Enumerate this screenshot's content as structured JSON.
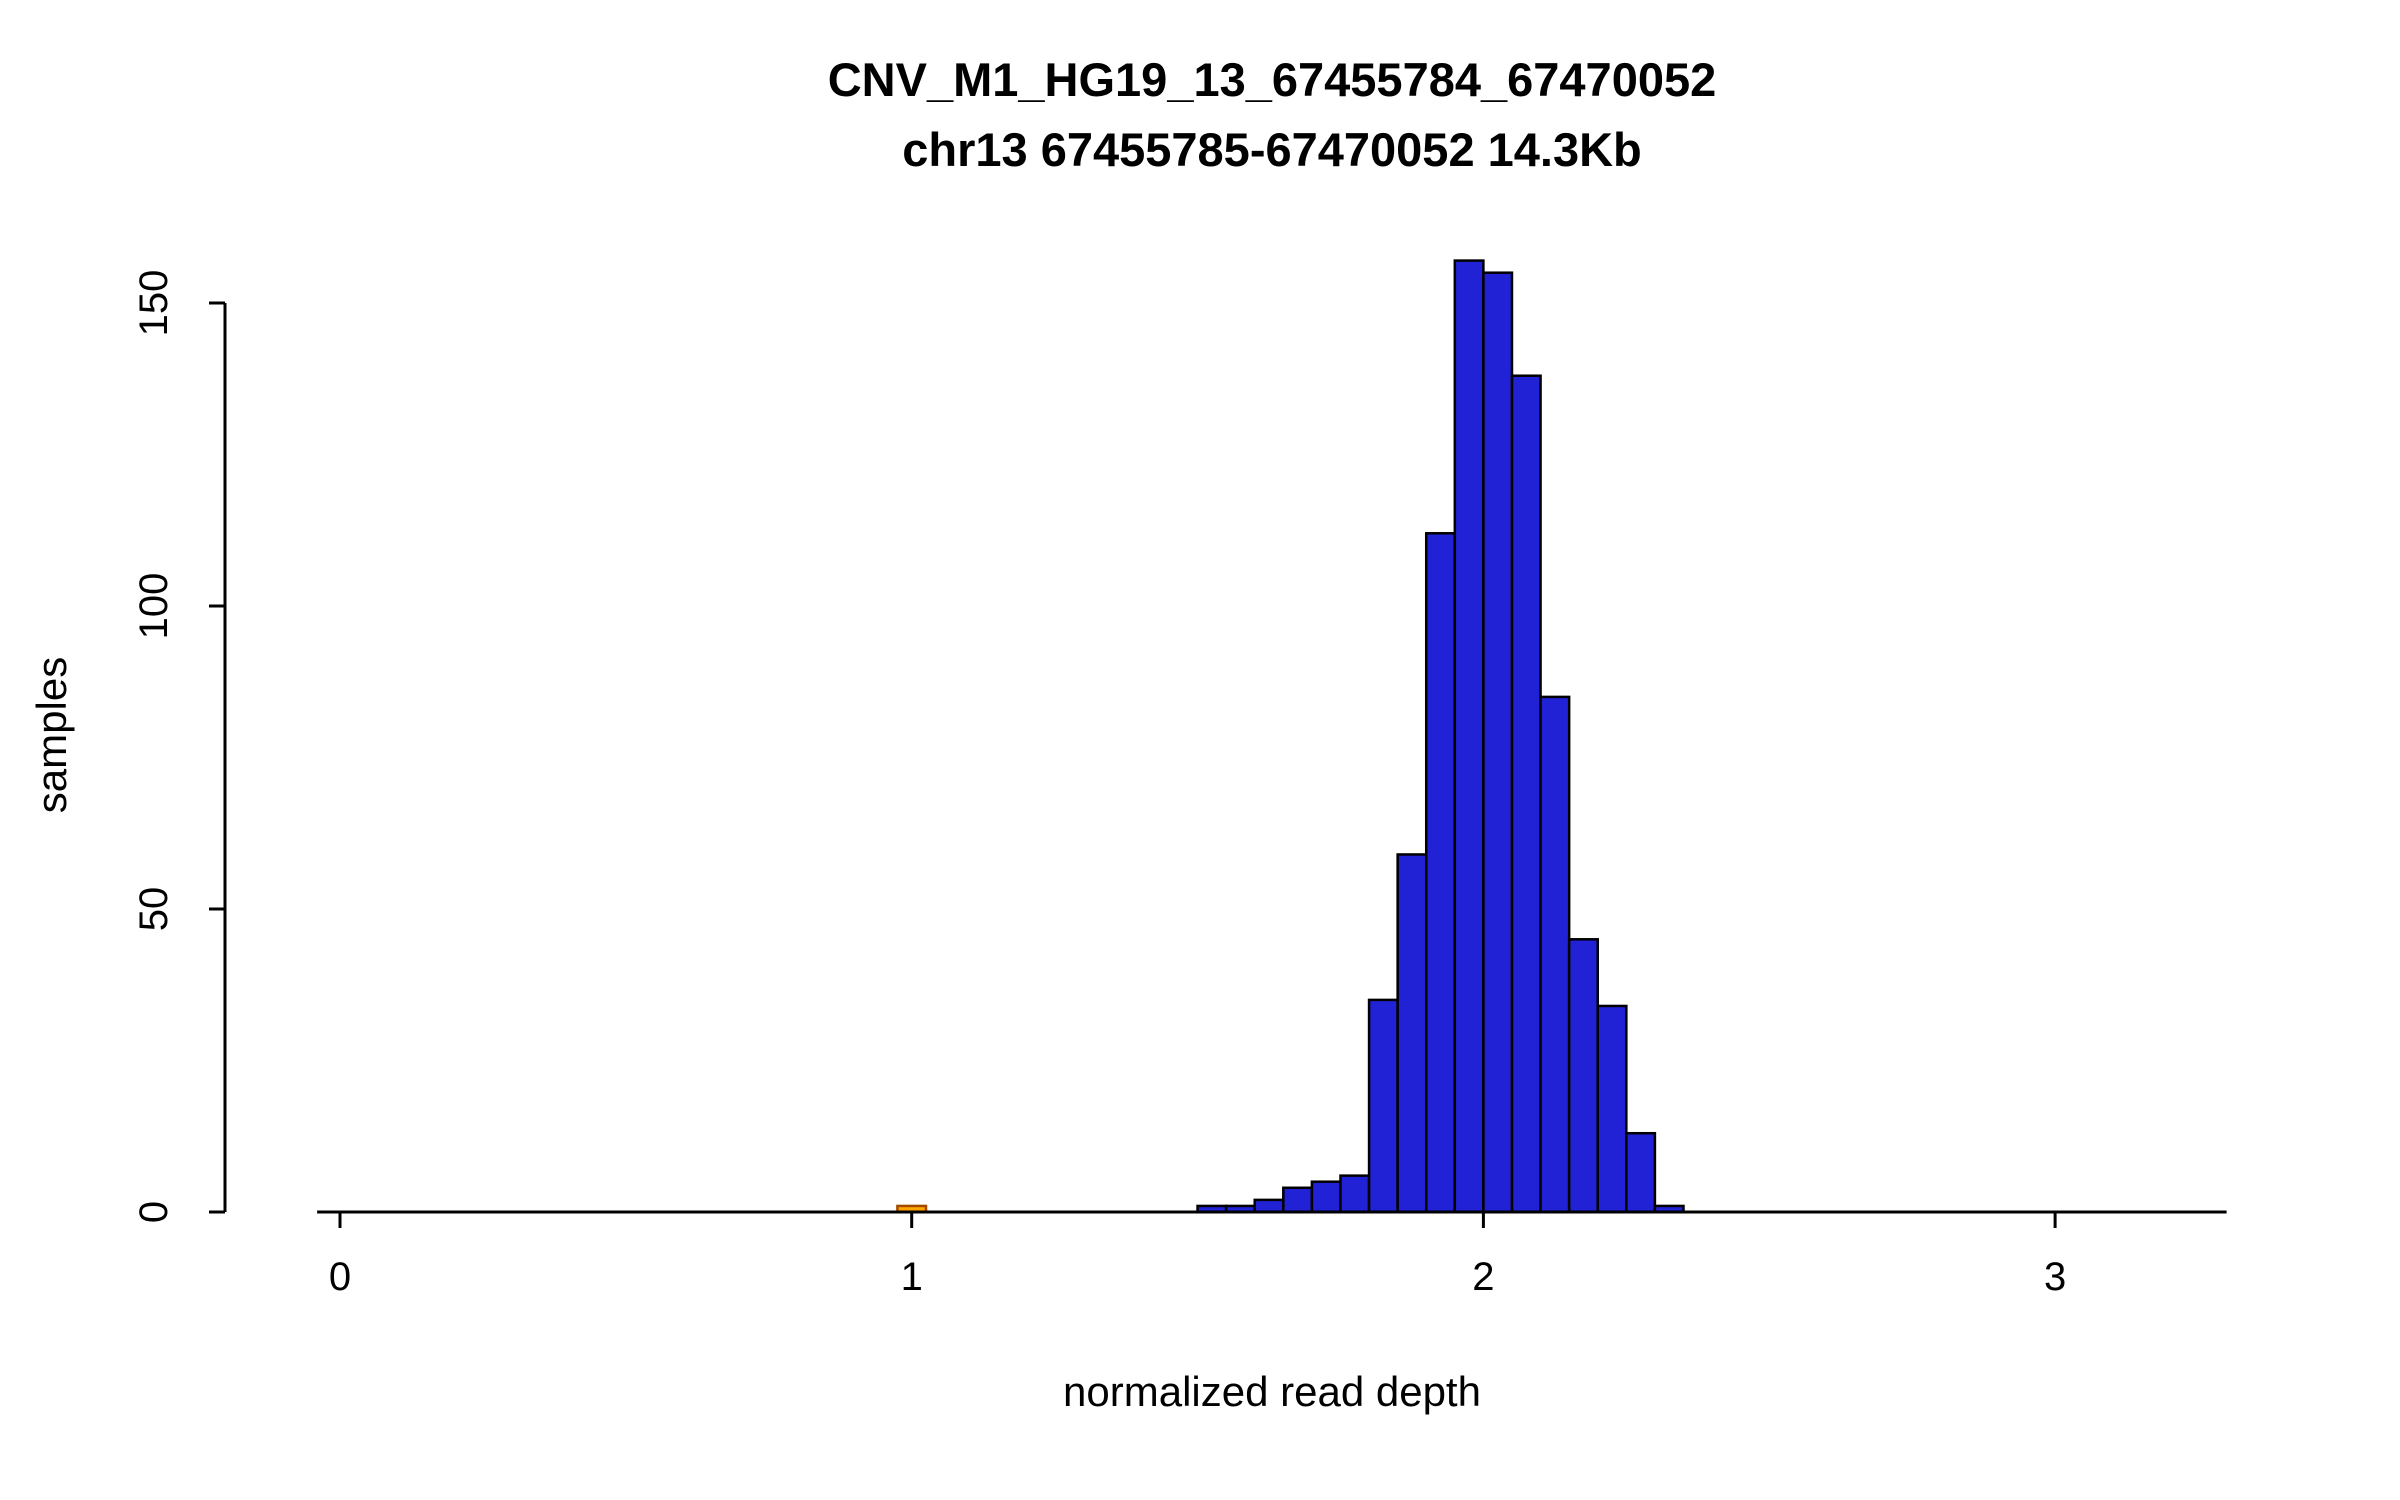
{
  "chart_data": {
    "type": "bar",
    "title": "CNV_M1_HG19_13_67455784_67470052",
    "subtitle": "chr13 67455785-67470052 14.3Kb",
    "xlabel": "normalized read depth",
    "ylabel": "samples",
    "bin_width": 0.05,
    "bins": [
      {
        "x": 1.5,
        "count": 1
      },
      {
        "x": 1.55,
        "count": 1
      },
      {
        "x": 1.6,
        "count": 2
      },
      {
        "x": 1.65,
        "count": 4
      },
      {
        "x": 1.7,
        "count": 5
      },
      {
        "x": 1.75,
        "count": 6
      },
      {
        "x": 1.8,
        "count": 35
      },
      {
        "x": 1.85,
        "count": 59
      },
      {
        "x": 1.9,
        "count": 112
      },
      {
        "x": 1.95,
        "count": 157
      },
      {
        "x": 2.0,
        "count": 155
      },
      {
        "x": 2.05,
        "count": 138
      },
      {
        "x": 2.1,
        "count": 85
      },
      {
        "x": 2.15,
        "count": 45
      },
      {
        "x": 2.2,
        "count": 34
      },
      {
        "x": 2.25,
        "count": 13
      },
      {
        "x": 2.3,
        "count": 1
      }
    ],
    "highlight_bin": {
      "x": 0.975,
      "count": 1,
      "fill": "#ffa500",
      "stroke": "#a34a00"
    },
    "x_ticks": [
      0,
      1,
      2,
      3
    ],
    "y_ticks": [
      0,
      50,
      100,
      150
    ],
    "xlim": [
      -0.04,
      3.3
    ],
    "ylim": [
      0,
      157
    ],
    "bar_fill": "#2121d6",
    "bar_stroke": "#000000",
    "axis_color": "#000000",
    "background": "#ffffff",
    "legend": "none",
    "grid": "off"
  }
}
